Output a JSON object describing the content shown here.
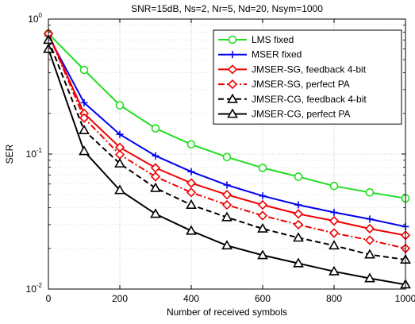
{
  "chart_data": {
    "type": "line",
    "title": "SNR=15dB, Ns=2, Nr=5, Nd=20, Nsym=1000",
    "xlabel": "Number of received symbols",
    "ylabel": "SER",
    "xlim": [
      0,
      1000
    ],
    "ylim": [
      0.01,
      1
    ],
    "yscale": "log",
    "grid": true,
    "legend_position": "top-right",
    "x_ticks": [
      0,
      200,
      400,
      600,
      800,
      1000
    ],
    "y_tick_labels": [
      {
        "base": "10",
        "exp": "0",
        "value": 1
      },
      {
        "base": "10",
        "exp": "-1",
        "value": 0.1
      },
      {
        "base": "10",
        "exp": "-2",
        "value": 0.01
      }
    ],
    "x": [
      0,
      100,
      200,
      300,
      400,
      500,
      600,
      700,
      800,
      900,
      1000
    ],
    "series": [
      {
        "name": "LMS fixed",
        "color": "#22dd22",
        "dash": "solid",
        "marker": "circle-open",
        "values": [
          0.78,
          0.42,
          0.23,
          0.155,
          0.118,
          0.095,
          0.079,
          0.068,
          0.058,
          0.052,
          0.047
        ]
      },
      {
        "name": "MSER fixed",
        "color": "#0000ee",
        "dash": "solid",
        "marker": "plus",
        "values": [
          0.75,
          0.24,
          0.14,
          0.097,
          0.074,
          0.059,
          0.049,
          0.042,
          0.037,
          0.033,
          0.029
        ]
      },
      {
        "name": "JMSER-SG, feedback 4-bit",
        "color": "#ee0000",
        "dash": "solid",
        "marker": "diamond-open",
        "values": [
          0.78,
          0.2,
          0.112,
          0.079,
          0.061,
          0.05,
          0.042,
          0.036,
          0.032,
          0.028,
          0.025
        ]
      },
      {
        "name": "JMSER-SG, perfect PA",
        "color": "#ee0000",
        "dash": "dashdot",
        "marker": "diamond-open",
        "values": [
          0.78,
          0.185,
          0.099,
          0.068,
          0.052,
          0.042,
          0.035,
          0.03,
          0.026,
          0.023,
          0.02
        ]
      },
      {
        "name": "JMSER-CG, feedback 4-bit",
        "color": "#000000",
        "dash": "dashed",
        "marker": "triangle-open",
        "values": [
          0.7,
          0.15,
          0.085,
          0.056,
          0.042,
          0.034,
          0.028,
          0.024,
          0.021,
          0.018,
          0.0165
        ]
      },
      {
        "name": "JMSER-CG, perfect PA",
        "color": "#000000",
        "dash": "solid",
        "marker": "triangle-open",
        "values": [
          0.6,
          0.105,
          0.054,
          0.036,
          0.027,
          0.021,
          0.0178,
          0.0155,
          0.0135,
          0.012,
          0.0108
        ]
      }
    ]
  }
}
